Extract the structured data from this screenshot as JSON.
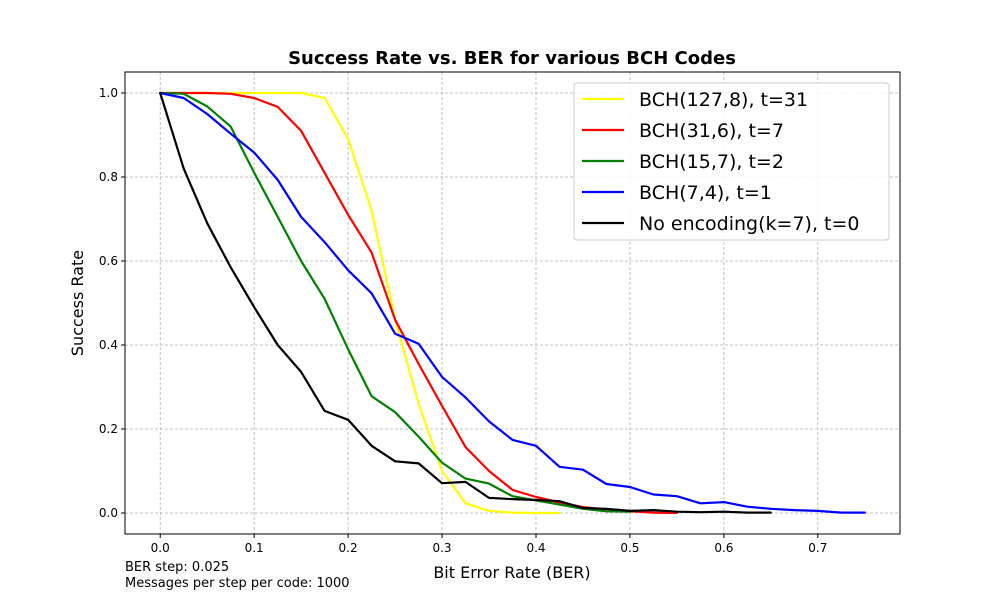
{
  "chart_data": {
    "type": "line",
    "title": "Success Rate vs. BER for various BCH Codes",
    "xlabel": "Bit Error Rate (BER)",
    "ylabel": "Success Rate",
    "xlim": [
      -0.0375,
      0.7875
    ],
    "ylim": [
      -0.05,
      1.05
    ],
    "xticks": [
      "0.0",
      "0.1",
      "0.2",
      "0.3",
      "0.4",
      "0.5",
      "0.6",
      "0.7"
    ],
    "yticks": [
      "0.0",
      "0.2",
      "0.4",
      "0.6",
      "0.8",
      "1.0"
    ],
    "grid": true,
    "legend_position": "top-right",
    "series": [
      {
        "name": "BCH(127,8), t=31",
        "color": "#ffff00",
        "x": [
          0,
          0.025,
          0.05,
          0.075,
          0.1,
          0.125,
          0.15,
          0.175,
          0.2,
          0.225,
          0.25,
          0.275,
          0.3,
          0.325,
          0.35,
          0.375,
          0.4,
          0.425
        ],
        "y": [
          1.0,
          1.0,
          1.0,
          1.0,
          1.0,
          1.0,
          1.0,
          0.988,
          0.89,
          0.72,
          0.46,
          0.26,
          0.1,
          0.023,
          0.005,
          0.001,
          0.0,
          0.0
        ]
      },
      {
        "name": "BCH(31,6), t=7",
        "color": "#ff0000",
        "x": [
          0,
          0.025,
          0.05,
          0.075,
          0.1,
          0.125,
          0.15,
          0.175,
          0.2,
          0.225,
          0.25,
          0.275,
          0.3,
          0.325,
          0.35,
          0.375,
          0.4,
          0.425,
          0.45,
          0.475,
          0.5,
          0.525,
          0.55
        ],
        "y": [
          1.0,
          1.0,
          1.0,
          0.998,
          0.988,
          0.967,
          0.91,
          0.81,
          0.71,
          0.62,
          0.46,
          0.355,
          0.255,
          0.157,
          0.1,
          0.055,
          0.038,
          0.025,
          0.014,
          0.008,
          0.004,
          0.001,
          0.0
        ]
      },
      {
        "name": "BCH(15,7), t=2",
        "color": "#008000",
        "x": [
          0,
          0.025,
          0.05,
          0.075,
          0.1,
          0.125,
          0.15,
          0.175,
          0.2,
          0.225,
          0.25,
          0.275,
          0.3,
          0.325,
          0.35,
          0.375,
          0.4,
          0.425,
          0.45,
          0.475,
          0.5
        ],
        "y": [
          1.0,
          0.998,
          0.968,
          0.92,
          0.81,
          0.705,
          0.6,
          0.51,
          0.39,
          0.278,
          0.24,
          0.182,
          0.12,
          0.082,
          0.07,
          0.04,
          0.03,
          0.02,
          0.01,
          0.004,
          0.003
        ]
      },
      {
        "name": "BCH(7,4), t=1",
        "color": "#0000ff",
        "x": [
          0,
          0.025,
          0.05,
          0.075,
          0.1,
          0.125,
          0.15,
          0.175,
          0.2,
          0.225,
          0.25,
          0.275,
          0.3,
          0.325,
          0.35,
          0.375,
          0.4,
          0.425,
          0.45,
          0.475,
          0.5,
          0.525,
          0.55,
          0.575,
          0.6,
          0.625,
          0.65,
          0.675,
          0.7,
          0.725,
          0.75
        ],
        "y": [
          1.0,
          0.988,
          0.95,
          0.903,
          0.858,
          0.793,
          0.705,
          0.645,
          0.578,
          0.523,
          0.427,
          0.403,
          0.324,
          0.275,
          0.218,
          0.174,
          0.16,
          0.11,
          0.103,
          0.069,
          0.062,
          0.044,
          0.04,
          0.023,
          0.026,
          0.015,
          0.01,
          0.007,
          0.005,
          0.001,
          0.001
        ]
      },
      {
        "name": "No encoding(k=7), t=0",
        "color": "#000000",
        "x": [
          0,
          0.025,
          0.05,
          0.075,
          0.1,
          0.125,
          0.15,
          0.175,
          0.2,
          0.225,
          0.25,
          0.275,
          0.3,
          0.325,
          0.35,
          0.375,
          0.4,
          0.425,
          0.45,
          0.475,
          0.5,
          0.525,
          0.55,
          0.575,
          0.6,
          0.625,
          0.65
        ],
        "y": [
          1.0,
          0.82,
          0.69,
          0.585,
          0.49,
          0.4,
          0.336,
          0.243,
          0.222,
          0.16,
          0.123,
          0.118,
          0.071,
          0.074,
          0.036,
          0.033,
          0.031,
          0.028,
          0.012,
          0.01,
          0.005,
          0.007,
          0.003,
          0.002,
          0.003,
          0.001,
          0.001
        ]
      }
    ]
  },
  "footnotes": {
    "ber_step": "BER step: 0.025",
    "messages_per_step": "Messages per step per code: 1000"
  }
}
